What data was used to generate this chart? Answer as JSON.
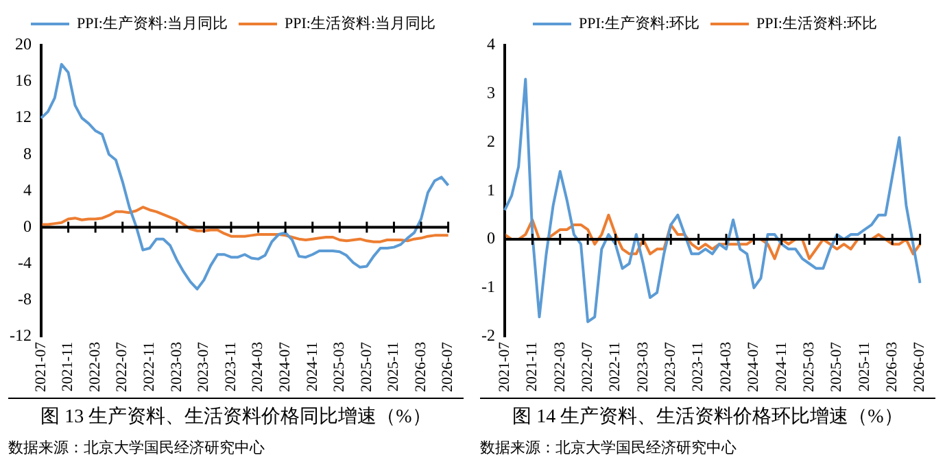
{
  "chart_data": [
    {
      "type": "line",
      "title": "图 13  生产资料、生活资料价格同比增速（%）",
      "annotations": [
        "数据来源：北京大学国民经济研究中心"
      ],
      "legend": "top",
      "marker": "none",
      "ylim": [
        -12,
        20
      ],
      "yticks": [
        -12,
        -8,
        -4,
        0,
        4,
        8,
        12,
        16,
        20
      ],
      "categories": [
        "2021-07",
        null,
        null,
        null,
        "2021-11",
        null,
        null,
        null,
        "2022-03",
        null,
        null,
        null,
        "2022-07",
        null,
        null,
        null,
        "2022-11",
        null,
        null,
        null,
        "2023-03",
        null,
        null,
        null,
        "2023-07",
        null,
        null,
        null,
        "2023-11",
        null,
        null,
        null,
        "2024-03",
        null,
        null,
        null,
        "2024-07",
        null,
        null,
        null,
        "2024-11",
        null,
        null,
        null,
        "2025-03",
        null,
        null,
        null,
        "2025-07",
        null,
        null,
        null,
        "2025-11",
        null,
        null,
        null,
        "2026-03",
        null,
        null,
        null,
        "2026-07"
      ],
      "series": [
        {
          "name": "PPI:生产资料:当月同比",
          "color": "#5b9bd5",
          "values": [
            12.0,
            12.7,
            14.2,
            17.9,
            17.0,
            13.4,
            12.0,
            11.4,
            10.6,
            10.2,
            8.0,
            7.4,
            5.0,
            2.2,
            0.1,
            -2.5,
            -2.3,
            -1.3,
            -1.3,
            -2.0,
            -3.6,
            -4.9,
            -6.0,
            -6.8,
            -5.8,
            -4.2,
            -3.0,
            -3.0,
            -3.3,
            -3.3,
            -3.0,
            -3.4,
            -3.5,
            -3.1,
            -1.6,
            -0.8,
            -0.6,
            -1.4,
            -3.2,
            -3.3,
            -3.0,
            -2.6,
            -2.6,
            -2.6,
            -2.7,
            -3.1,
            -3.9,
            -4.4,
            -4.3,
            -3.2,
            -2.3,
            -2.3,
            -2.2,
            -1.9,
            -1.2,
            -0.6,
            0.9,
            3.8,
            5.1,
            5.5,
            4.6
          ]
        },
        {
          "name": "PPI:生活资料:当月同比",
          "color": "#ed7d31",
          "values": [
            0.3,
            0.3,
            0.4,
            0.5,
            0.9,
            1.0,
            0.8,
            0.9,
            0.9,
            1.0,
            1.3,
            1.7,
            1.7,
            1.6,
            1.8,
            2.2,
            1.9,
            1.7,
            1.4,
            1.1,
            0.8,
            0.3,
            -0.2,
            -0.4,
            -0.4,
            -0.3,
            -0.3,
            -0.7,
            -1.0,
            -1.0,
            -1.0,
            -0.9,
            -0.8,
            -0.8,
            -0.8,
            -0.8,
            -0.9,
            -1.1,
            -1.3,
            -1.4,
            -1.3,
            -1.2,
            -1.1,
            -1.1,
            -1.4,
            -1.5,
            -1.4,
            -1.3,
            -1.5,
            -1.6,
            -1.6,
            -1.4,
            -1.4,
            -1.4,
            -1.5,
            -1.3,
            -1.2,
            -1.0,
            -0.9,
            -0.9,
            -0.9
          ]
        }
      ]
    },
    {
      "type": "line",
      "title": "图 14  生产资料、生活资料价格环比增速（%）",
      "annotations": [
        "数据来源：北京大学国民经济研究中心"
      ],
      "legend": "top",
      "marker": "none",
      "ylim": [
        -2,
        4
      ],
      "yticks": [
        -2,
        -1,
        0,
        1,
        2,
        3,
        4
      ],
      "categories": [
        "2021-07",
        null,
        null,
        null,
        "2021-11",
        null,
        null,
        null,
        "2022-03",
        null,
        null,
        null,
        "2022-07",
        null,
        null,
        null,
        "2022-11",
        null,
        null,
        null,
        "2023-03",
        null,
        null,
        null,
        "2023-07",
        null,
        null,
        null,
        "2023-11",
        null,
        null,
        null,
        "2024-03",
        null,
        null,
        null,
        "2024-07",
        null,
        null,
        null,
        "2024-11",
        null,
        null,
        null,
        "2025-03",
        null,
        null,
        null,
        "2025-07",
        null,
        null,
        null,
        "2025-11",
        null,
        null,
        null,
        "2026-03",
        null,
        null,
        null,
        "2026-07"
      ],
      "series": [
        {
          "name": "PPI:生产资料:环比",
          "color": "#5b9bd5",
          "values": [
            0.6,
            0.9,
            1.5,
            3.3,
            0.1,
            -1.6,
            -0.3,
            0.7,
            1.4,
            0.8,
            0.1,
            -0.1,
            -1.7,
            -1.6,
            -0.2,
            0.1,
            -0.1,
            -0.6,
            -0.5,
            0.1,
            -0.5,
            -1.2,
            -1.1,
            -0.3,
            0.3,
            0.5,
            0.1,
            -0.3,
            -0.3,
            -0.2,
            -0.3,
            -0.1,
            -0.2,
            0.4,
            -0.2,
            -0.3,
            -1.0,
            -0.8,
            0.1,
            0.1,
            -0.1,
            -0.2,
            -0.2,
            -0.4,
            -0.5,
            -0.6,
            -0.6,
            -0.2,
            0.1,
            0.0,
            0.1,
            0.1,
            0.2,
            0.3,
            0.5,
            0.5,
            1.3,
            2.1,
            0.7,
            -0.1,
            -0.9
          ]
        },
        {
          "name": "PPI:生活资料:环比",
          "color": "#ed7d31",
          "values": [
            0.1,
            0.0,
            0.0,
            0.1,
            0.4,
            0.0,
            0.0,
            0.1,
            0.2,
            0.2,
            0.3,
            0.3,
            0.2,
            -0.1,
            0.1,
            0.5,
            0.1,
            -0.2,
            -0.3,
            -0.3,
            0.0,
            -0.3,
            -0.2,
            -0.2,
            0.3,
            0.1,
            0.1,
            -0.1,
            -0.2,
            -0.1,
            -0.2,
            -0.1,
            -0.1,
            -0.1,
            -0.1,
            -0.1,
            0.0,
            0.0,
            -0.1,
            -0.4,
            0.0,
            -0.1,
            0.0,
            0.0,
            -0.4,
            -0.2,
            0.0,
            -0.1,
            -0.2,
            -0.1,
            -0.2,
            0.0,
            0.0,
            0.0,
            0.1,
            0.0,
            -0.1,
            -0.1,
            0.0,
            -0.3,
            -0.1
          ]
        }
      ]
    }
  ]
}
